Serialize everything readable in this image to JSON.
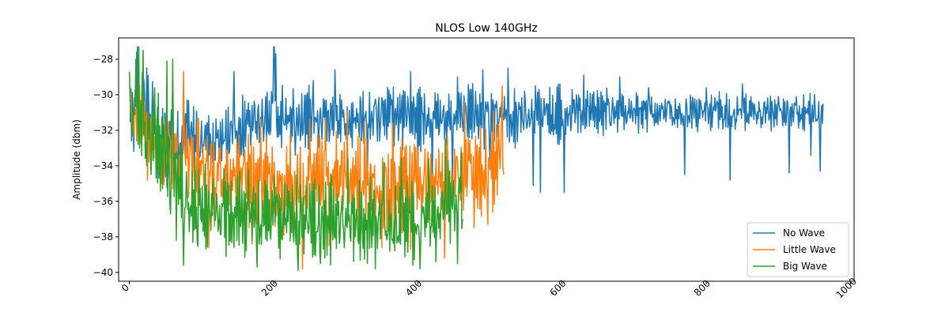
{
  "chart_data": {
    "type": "line",
    "title": "NLOS Low 140GHz",
    "xlabel": "",
    "ylabel": "Amplitude (dbm)",
    "xlim": [
      -15,
      1005
    ],
    "ylim": [
      -40.5,
      -26.8
    ],
    "x_ticks": [
      0,
      200,
      400,
      600,
      800,
      1000
    ],
    "y_ticks": [
      -40,
      -38,
      -36,
      -34,
      -32,
      -30,
      -28
    ],
    "grid": false,
    "legend_position": "lower-right",
    "series": [
      {
        "name": "No Wave",
        "color": "#1f77b4",
        "n_points": 963,
        "anchors": [
          [
            0,
            -30.5
          ],
          [
            10,
            -29.5
          ],
          [
            20,
            -30.2
          ],
          [
            40,
            -31.5
          ],
          [
            60,
            -32.5
          ],
          [
            80,
            -31.8
          ],
          [
            100,
            -32.6
          ],
          [
            120,
            -32.5
          ],
          [
            140,
            -32.3
          ],
          [
            160,
            -31.8
          ],
          [
            180,
            -31.5
          ],
          [
            200,
            -31.2
          ],
          [
            220,
            -31.3
          ],
          [
            240,
            -31.2
          ],
          [
            260,
            -31.4
          ],
          [
            280,
            -31.5
          ],
          [
            300,
            -31.5
          ],
          [
            320,
            -31.3
          ],
          [
            340,
            -31.3
          ],
          [
            360,
            -31.2
          ],
          [
            380,
            -31.3
          ],
          [
            400,
            -31.4
          ],
          [
            420,
            -31.3
          ],
          [
            440,
            -31.3
          ],
          [
            460,
            -31.2
          ],
          [
            480,
            -31.2
          ],
          [
            500,
            -31.3
          ],
          [
            520,
            -31.3
          ],
          [
            540,
            -31.2
          ],
          [
            560,
            -31.1
          ],
          [
            580,
            -31.1
          ],
          [
            600,
            -31.1
          ],
          [
            620,
            -31.1
          ],
          [
            640,
            -31.0
          ],
          [
            660,
            -31.0
          ],
          [
            680,
            -31.0
          ],
          [
            700,
            -31.0
          ],
          [
            720,
            -31.0
          ],
          [
            740,
            -31.0
          ],
          [
            760,
            -31.0
          ],
          [
            780,
            -31.0
          ],
          [
            800,
            -31.0
          ],
          [
            820,
            -31.0
          ],
          [
            840,
            -31.0
          ],
          [
            860,
            -31.0
          ],
          [
            880,
            -31.0
          ],
          [
            900,
            -31.0
          ],
          [
            920,
            -31.0
          ],
          [
            940,
            -31.0
          ],
          [
            962,
            -31.0
          ]
        ],
        "spread": [
          [
            0,
            1.2
          ],
          [
            30,
            1.8
          ],
          [
            60,
            1.6
          ],
          [
            120,
            1.6
          ],
          [
            200,
            1.4
          ],
          [
            400,
            1.4
          ],
          [
            500,
            1.4
          ],
          [
            600,
            1.3
          ],
          [
            700,
            0.9
          ],
          [
            800,
            0.9
          ],
          [
            962,
            0.9
          ]
        ],
        "extremes": [
          [
            1,
            -31.5
          ],
          [
            3,
            -32.6
          ],
          [
            6,
            -33.2
          ],
          [
            9,
            -28.0
          ],
          [
            11,
            -27.3
          ],
          [
            14,
            -31.5
          ],
          [
            22,
            -32.1
          ],
          [
            30,
            -33.4
          ],
          [
            41,
            -34.7
          ],
          [
            52,
            -35.2
          ],
          [
            53,
            -35.3
          ],
          [
            60,
            -34.4
          ],
          [
            68,
            -35.0
          ],
          [
            90,
            -34.5
          ],
          [
            111,
            -33.4
          ],
          [
            117,
            -34.2
          ],
          [
            135,
            -35.7
          ],
          [
            145,
            -28.7
          ],
          [
            200,
            -27.3
          ],
          [
            201,
            -27.3
          ],
          [
            203,
            -27.7
          ],
          [
            230,
            -33.4
          ],
          [
            255,
            -29.2
          ],
          [
            285,
            -28.6
          ],
          [
            330,
            -35.0
          ],
          [
            390,
            -28.7
          ],
          [
            400,
            -35.8
          ],
          [
            420,
            -35.3
          ],
          [
            448,
            -34.8
          ],
          [
            455,
            -29.0
          ],
          [
            490,
            -28.6
          ],
          [
            500,
            -34.0
          ],
          [
            525,
            -28.5
          ],
          [
            548,
            -29.8
          ],
          [
            560,
            -35.1
          ],
          [
            570,
            -35.5
          ],
          [
            603,
            -35.5
          ],
          [
            630,
            -28.9
          ],
          [
            680,
            -29.0
          ],
          [
            720,
            -29.6
          ],
          [
            770,
            -34.5
          ],
          [
            800,
            -29.6
          ],
          [
            833,
            -34.8
          ],
          [
            850,
            -29.4
          ],
          [
            900,
            -30.1
          ],
          [
            915,
            -34.4
          ],
          [
            925,
            -30.1
          ],
          [
            945,
            -33.4
          ],
          [
            958,
            -34.3
          ],
          [
            960,
            -30.6
          ],
          [
            962,
            -30.5
          ]
        ]
      },
      {
        "name": "Little Wave",
        "color": "#ff7f0e",
        "n_points": 520,
        "anchors": [
          [
            0,
            -31.0
          ],
          [
            20,
            -31.5
          ],
          [
            40,
            -33.0
          ],
          [
            70,
            -33.5
          ],
          [
            100,
            -34.0
          ],
          [
            150,
            -34.8
          ],
          [
            200,
            -35.0
          ],
          [
            250,
            -34.8
          ],
          [
            300,
            -34.5
          ],
          [
            350,
            -35.5
          ],
          [
            400,
            -34.8
          ],
          [
            450,
            -34.5
          ],
          [
            480,
            -34.2
          ],
          [
            500,
            -34.3
          ],
          [
            519,
            -33.0
          ]
        ],
        "spread": [
          [
            0,
            1.6
          ],
          [
            60,
            2.0
          ],
          [
            150,
            2.0
          ],
          [
            300,
            2.2
          ],
          [
            400,
            2.0
          ],
          [
            519,
            2.0
          ]
        ],
        "extremes": [
          [
            0,
            -30.3
          ],
          [
            3,
            -31.5
          ],
          [
            5,
            -32.4
          ],
          [
            8,
            -31.1
          ],
          [
            14,
            -29.5
          ],
          [
            17,
            -30.1
          ],
          [
            22,
            -33.0
          ],
          [
            25,
            -34.8
          ],
          [
            30,
            -34.1
          ],
          [
            44,
            -33.4
          ],
          [
            60,
            -35.3
          ],
          [
            67,
            -34.1
          ],
          [
            75,
            -28.7
          ],
          [
            80,
            -33.6
          ],
          [
            105,
            -36.8
          ],
          [
            110,
            -38.6
          ],
          [
            118,
            -37.4
          ],
          [
            139,
            -36.2
          ],
          [
            160,
            -33.1
          ],
          [
            170,
            -38.4
          ],
          [
            182,
            -31.4
          ],
          [
            202,
            -37.4
          ],
          [
            214,
            -37.9
          ],
          [
            228,
            -38.1
          ],
          [
            240,
            -39.8
          ],
          [
            250,
            -31.4
          ],
          [
            272,
            -31.3
          ],
          [
            277,
            -38.5
          ],
          [
            302,
            -30.9
          ],
          [
            311,
            -38.8
          ],
          [
            326,
            -31.5
          ],
          [
            350,
            -38.6
          ],
          [
            365,
            -31.6
          ],
          [
            390,
            -38.7
          ],
          [
            412,
            -36.2
          ],
          [
            437,
            -39.2
          ],
          [
            465,
            -30.5
          ],
          [
            478,
            -37.5
          ],
          [
            497,
            -37.3
          ],
          [
            505,
            -30.9
          ],
          [
            517,
            -29.5
          ],
          [
            519,
            -34.5
          ]
        ]
      },
      {
        "name": "Big Wave",
        "color": "#2ca02c",
        "n_points": 463,
        "anchors": [
          [
            0,
            -31.0
          ],
          [
            20,
            -31.8
          ],
          [
            40,
            -33.0
          ],
          [
            60,
            -34.0
          ],
          [
            80,
            -35.8
          ],
          [
            100,
            -36.3
          ],
          [
            150,
            -36.8
          ],
          [
            200,
            -36.9
          ],
          [
            250,
            -37.0
          ],
          [
            300,
            -37.2
          ],
          [
            350,
            -37.0
          ],
          [
            400,
            -37.0
          ],
          [
            440,
            -36.3
          ],
          [
            462,
            -36.0
          ]
        ],
        "spread": [
          [
            0,
            1.3
          ],
          [
            30,
            1.8
          ],
          [
            60,
            2.2
          ],
          [
            100,
            1.9
          ],
          [
            200,
            1.9
          ],
          [
            300,
            1.9
          ],
          [
            400,
            1.9
          ],
          [
            462,
            1.6
          ]
        ],
        "extremes": [
          [
            0,
            -28.7
          ],
          [
            1,
            -30.3
          ],
          [
            2,
            -31.3
          ],
          [
            4,
            -32.3
          ],
          [
            6,
            -31.0
          ],
          [
            8,
            -29.7
          ],
          [
            10,
            -27.6
          ],
          [
            13,
            -27.3
          ],
          [
            16,
            -30.5
          ],
          [
            19,
            -27.5
          ],
          [
            21,
            -31.5
          ],
          [
            24,
            -34.0
          ],
          [
            30,
            -34.5
          ],
          [
            35,
            -29.6
          ],
          [
            40,
            -29.9
          ],
          [
            47,
            -33.2
          ],
          [
            52,
            -28.1
          ],
          [
            57,
            -36.7
          ],
          [
            60,
            -28.0
          ],
          [
            64,
            -33.5
          ],
          [
            65,
            -38.2
          ],
          [
            75,
            -39.6
          ],
          [
            90,
            -37.6
          ],
          [
            94,
            -38.3
          ],
          [
            130,
            -36.1
          ],
          [
            145,
            -38.6
          ],
          [
            165,
            -34.2
          ],
          [
            177,
            -39.7
          ],
          [
            200,
            -36.2
          ],
          [
            234,
            -39.9
          ],
          [
            245,
            -35.1
          ],
          [
            265,
            -39.5
          ],
          [
            280,
            -34.5
          ],
          [
            290,
            -36.0
          ],
          [
            303,
            -33.6
          ],
          [
            330,
            -39.5
          ],
          [
            341,
            -39.8
          ],
          [
            353,
            -33.8
          ],
          [
            377,
            -33.6
          ],
          [
            393,
            -39.6
          ],
          [
            403,
            -39.8
          ],
          [
            415,
            -33.6
          ],
          [
            425,
            -39.4
          ],
          [
            438,
            -32.5
          ],
          [
            442,
            -33.7
          ],
          [
            455,
            -39.5
          ],
          [
            460,
            -33.2
          ],
          [
            462,
            -37.0
          ]
        ]
      }
    ]
  }
}
